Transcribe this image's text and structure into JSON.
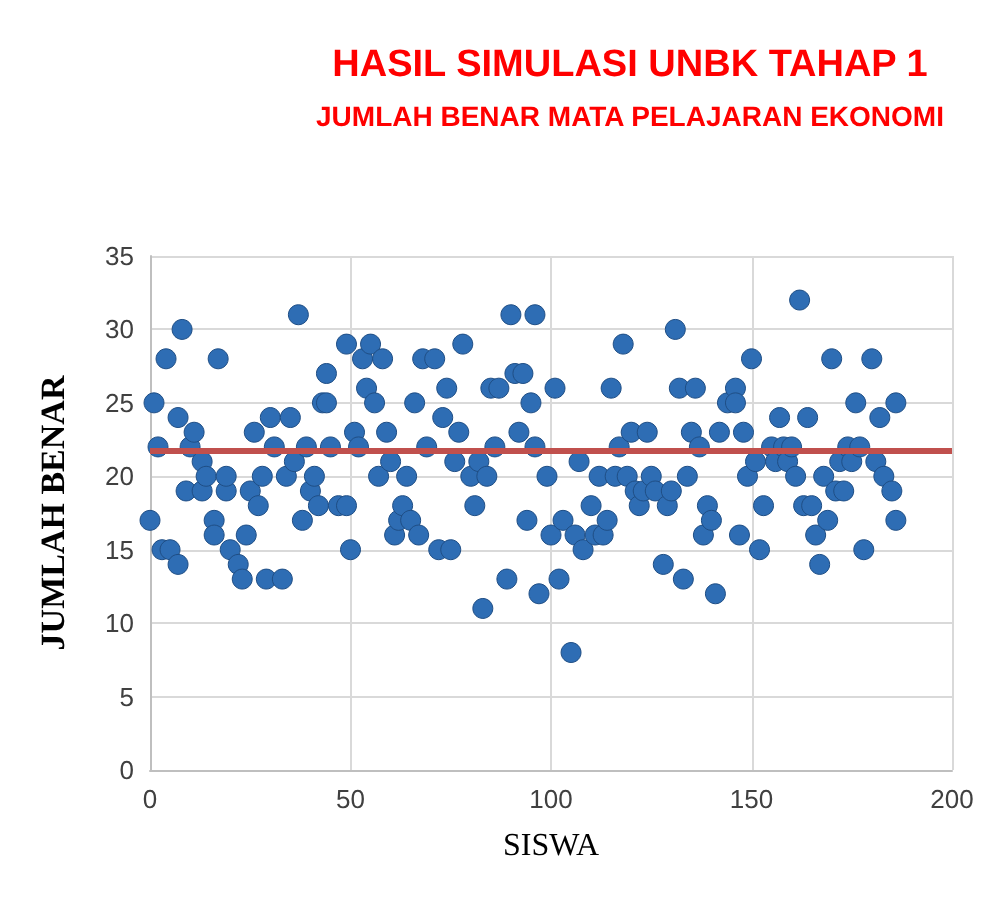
{
  "chart_data": {
    "type": "scatter",
    "title": "HASIL SIMULASI UNBK TAHAP 1",
    "subtitle": "JUMLAH BENAR MATA PELAJARAN EKONOMI",
    "xlabel": "SISWA",
    "ylabel": "JUMLAH BENAR",
    "x": [
      0,
      1,
      2,
      3,
      4,
      5,
      7,
      7,
      8,
      9,
      10,
      11,
      13,
      13,
      14,
      16,
      16,
      17,
      19,
      19,
      20,
      22,
      23,
      24,
      25,
      26,
      27,
      28,
      29,
      30,
      31,
      33,
      34,
      35,
      36,
      37,
      38,
      39,
      40,
      41,
      42,
      43,
      44,
      44,
      45,
      47,
      49,
      49,
      50,
      51,
      52,
      53,
      54,
      55,
      56,
      57,
      58,
      59,
      60,
      61,
      62,
      63,
      64,
      65,
      66,
      67,
      68,
      69,
      71,
      72,
      73,
      74,
      75,
      76,
      77,
      78,
      80,
      81,
      82,
      83,
      84,
      85,
      86,
      87,
      89,
      90,
      91,
      92,
      93,
      94,
      95,
      96,
      96,
      97,
      99,
      100,
      101,
      102,
      103,
      105,
      106,
      107,
      108,
      110,
      111,
      112,
      113,
      114,
      115,
      116,
      117,
      118,
      119,
      120,
      121,
      122,
      123,
      124,
      125,
      126,
      128,
      129,
      130,
      131,
      132,
      133,
      134,
      135,
      136,
      137,
      138,
      139,
      140,
      141,
      142,
      144,
      146,
      146,
      147,
      148,
      149,
      150,
      151,
      152,
      153,
      155,
      156,
      157,
      158,
      159,
      160,
      161,
      162,
      163,
      164,
      165,
      166,
      167,
      168,
      169,
      170,
      171,
      172,
      173,
      174,
      175,
      176,
      177,
      178,
      180,
      181,
      182,
      183,
      185,
      186,
      186
    ],
    "series": [
      {
        "color": "#2e6db4",
        "values": [
          17,
          25,
          22,
          15,
          28,
          15,
          14,
          24,
          30,
          19,
          22,
          23,
          19,
          21,
          20,
          17,
          16,
          28,
          19,
          20,
          15,
          14,
          13,
          16,
          19,
          23,
          18,
          20,
          13,
          24,
          22,
          13,
          20,
          24,
          21,
          31,
          17,
          22,
          19,
          20,
          18,
          25,
          25,
          27,
          22,
          18,
          18,
          29,
          15,
          23,
          22,
          28,
          26,
          29,
          25,
          20,
          28,
          23,
          21,
          16,
          17,
          18,
          20,
          17,
          25,
          16,
          28,
          22,
          28,
          15,
          24,
          26,
          15,
          21,
          23,
          29,
          20,
          18,
          21,
          11,
          20,
          26,
          22,
          26,
          13,
          31,
          27,
          23,
          27,
          17,
          25,
          31,
          22,
          12,
          20,
          16,
          26,
          13,
          17,
          8,
          16,
          21,
          15,
          18,
          16,
          20,
          16,
          17,
          26,
          20,
          22,
          29,
          20,
          23,
          19,
          18,
          19,
          23,
          20,
          19,
          14,
          18,
          19,
          30,
          26,
          13,
          20,
          23,
          26,
          22,
          16,
          18,
          17,
          12,
          23,
          25,
          26,
          25,
          16,
          23,
          20,
          28,
          21,
          15,
          18,
          22,
          21,
          24,
          22,
          21,
          22,
          20,
          32,
          18,
          24,
          18,
          16,
          14,
          20,
          17,
          28,
          19,
          21,
          19,
          22,
          21,
          25,
          22,
          15,
          28,
          21,
          24,
          20,
          19,
          17,
          25
        ]
      }
    ],
    "xlim": [
      0,
      200
    ],
    "xticks": [
      0,
      50,
      100,
      150,
      200
    ],
    "ylim": [
      0,
      35
    ],
    "yticks": [
      0,
      5,
      10,
      15,
      20,
      25,
      30,
      35
    ],
    "grid": true,
    "marker": "circle",
    "ref_lines": [
      {
        "axis": "y",
        "value": 21.7,
        "color": "#c0504d",
        "line_style": "solid"
      }
    ]
  }
}
